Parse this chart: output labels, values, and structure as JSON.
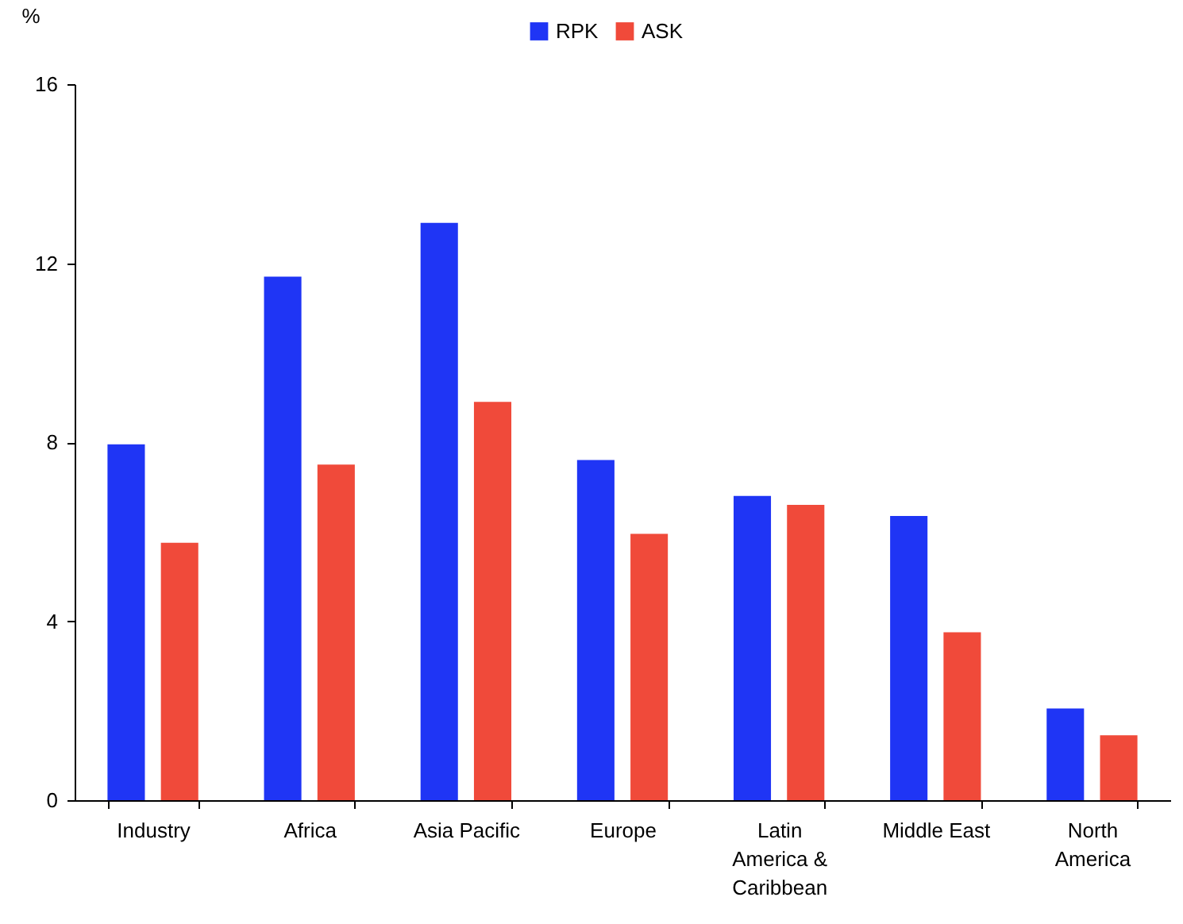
{
  "chart_data": {
    "type": "bar",
    "ylabel": "%",
    "categories": [
      "Industry",
      "Africa",
      "Asia Pacific",
      "Europe",
      "Latin America & Caribbean",
      "Middle East",
      "North America"
    ],
    "series": [
      {
        "name": "RPK",
        "color": "#1f35f5",
        "values": [
          7.95,
          11.7,
          12.9,
          7.6,
          6.8,
          6.35,
          2.05
        ]
      },
      {
        "name": "ASK",
        "color": "#f04a3a",
        "values": [
          5.75,
          7.5,
          8.9,
          5.95,
          6.6,
          3.75,
          1.45
        ]
      }
    ],
    "ylim": [
      0,
      16
    ],
    "yticks": [
      0,
      4,
      8,
      12,
      16
    ],
    "grid": false,
    "legend": "top"
  }
}
